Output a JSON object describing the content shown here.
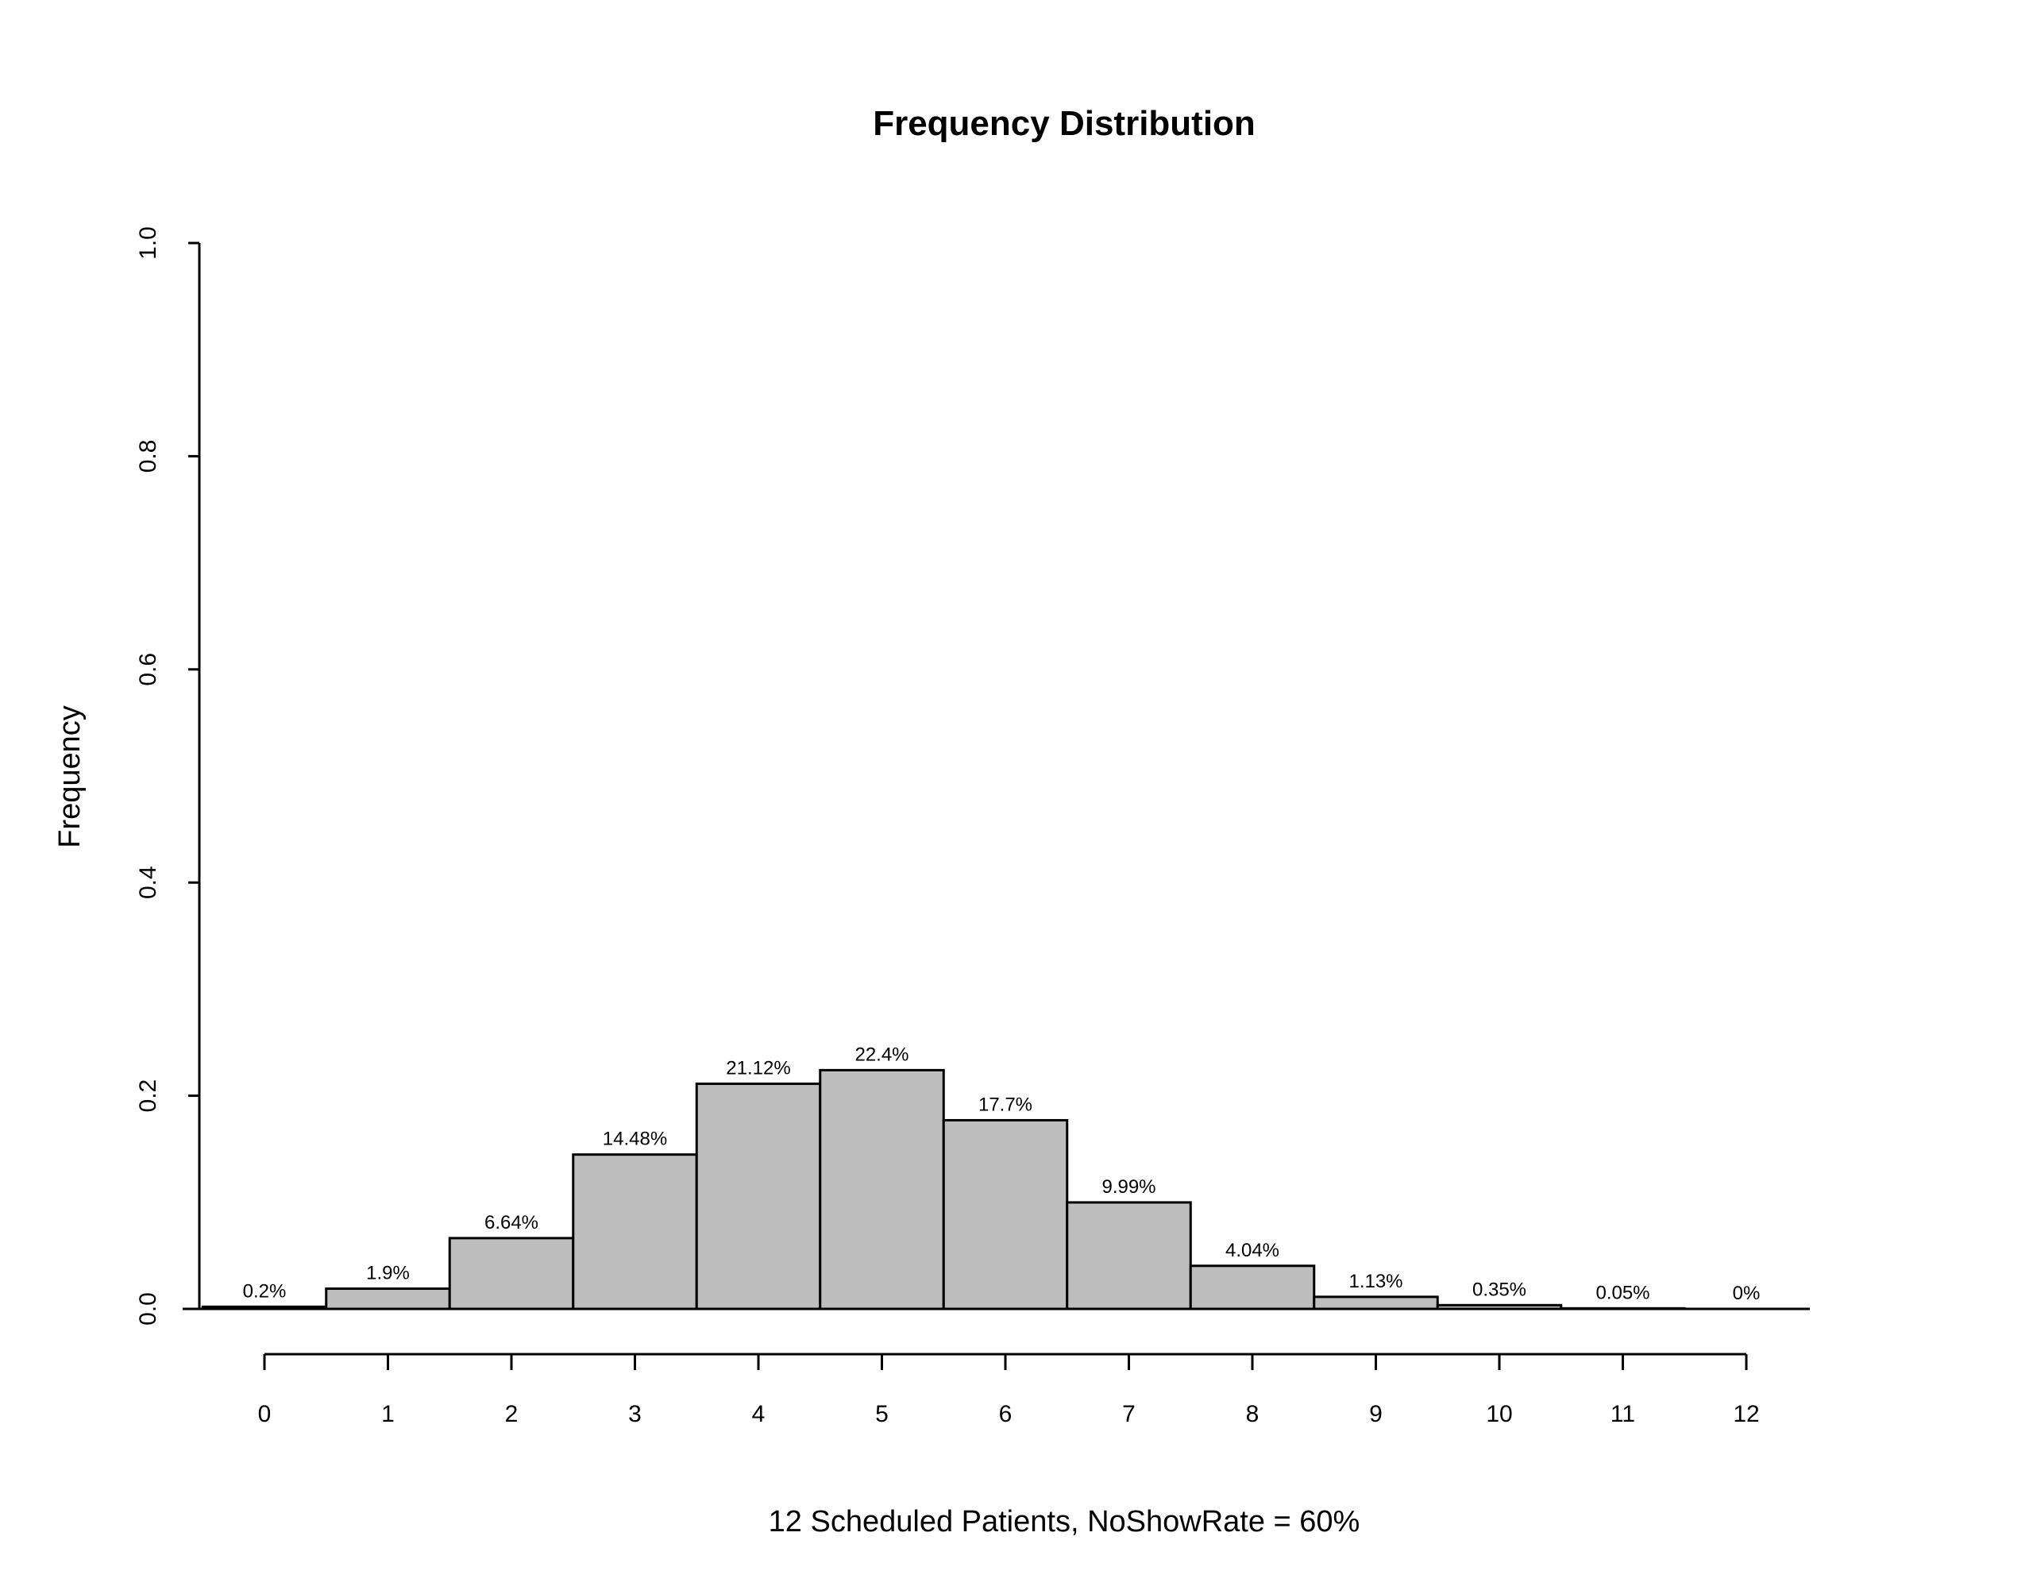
{
  "chart_data": {
    "type": "bar",
    "title": "Frequency Distribution",
    "xlabel": "12 Scheduled Patients,  NoShowRate = 60%",
    "ylabel": "Frequency",
    "categories": [
      "0",
      "1",
      "2",
      "3",
      "4",
      "5",
      "6",
      "7",
      "8",
      "9",
      "10",
      "11",
      "12"
    ],
    "values": [
      0.002,
      0.019,
      0.0664,
      0.1448,
      0.2112,
      0.224,
      0.177,
      0.0999,
      0.0404,
      0.0113,
      0.0035,
      0.0005,
      0.0
    ],
    "data_labels": [
      "0.2%",
      "1.9%",
      "6.64%",
      "14.48%",
      "21.12%",
      "22.4%",
      "17.7%",
      "9.99%",
      "4.04%",
      "1.13%",
      "0.35%",
      "0.05%",
      "0%"
    ],
    "ylim": [
      0,
      1
    ],
    "yticks": [
      "0.0",
      "0.2",
      "0.4",
      "0.6",
      "0.8",
      "1.0"
    ],
    "grid": false,
    "bar_color": "#bebebe"
  }
}
